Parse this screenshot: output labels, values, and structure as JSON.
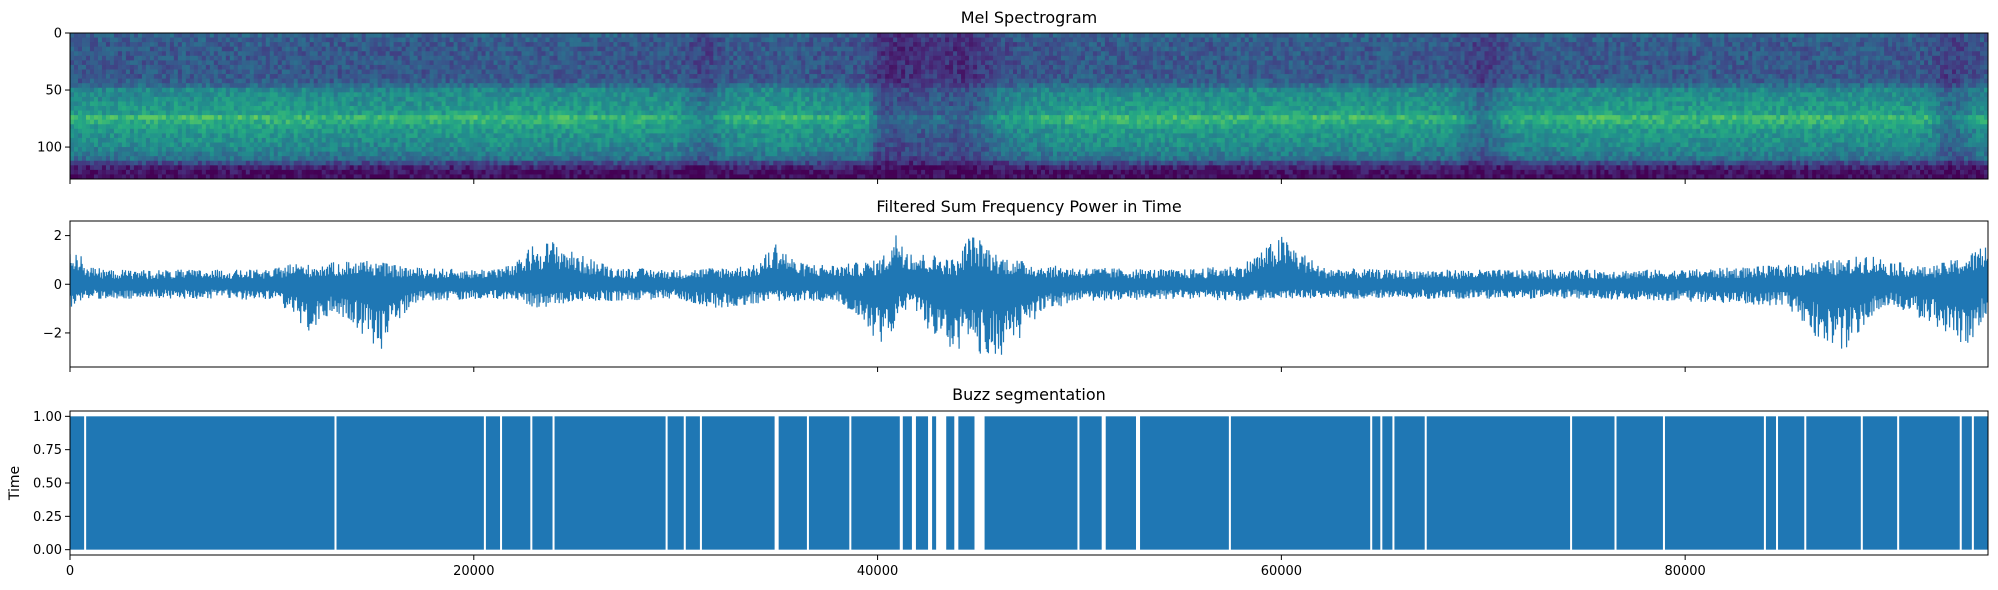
{
  "figure": {
    "background": "#ffffff"
  },
  "chart_data": [
    {
      "type": "heatmap",
      "title": "Mel Spectrogram",
      "colormap": "viridis",
      "xlim": [
        0,
        95000
      ],
      "ylim": [
        0,
        128
      ],
      "y_inverted": true,
      "yticks": [
        0,
        50,
        100
      ],
      "ytick_labels": [
        "0",
        "50",
        "100"
      ],
      "xticks": [
        0,
        20000,
        40000,
        60000,
        80000
      ],
      "xtick_labels_visible": false,
      "rows": 128,
      "time_profile": {
        "x": [
          0,
          5000,
          10000,
          15000,
          20000,
          25000,
          30000,
          31500,
          32500,
          35000,
          39500,
          40000,
          41000,
          42000,
          43000,
          44000,
          45000,
          46000,
          47000,
          50000,
          55000,
          60000,
          65000,
          68500,
          70000,
          71500,
          75000,
          80000,
          85000,
          90000,
          92000,
          93000,
          94000,
          95000
        ],
        "energy": [
          0.55,
          0.6,
          0.6,
          0.55,
          0.6,
          0.6,
          0.55,
          0.3,
          0.55,
          0.6,
          0.5,
          0.15,
          0.1,
          0.15,
          0.2,
          0.1,
          0.2,
          0.4,
          0.5,
          0.6,
          0.6,
          0.6,
          0.6,
          0.55,
          0.25,
          0.55,
          0.6,
          0.6,
          0.6,
          0.6,
          0.55,
          0.25,
          0.4,
          0.55
        ]
      },
      "band_profile": {
        "mel_bin": [
          0,
          10,
          20,
          30,
          40,
          45,
          50,
          60,
          70,
          75,
          80,
          90,
          100,
          110,
          115,
          120,
          128
        ],
        "intensity": [
          0.35,
          0.3,
          0.3,
          0.3,
          0.3,
          0.35,
          0.5,
          0.55,
          0.6,
          0.75,
          0.62,
          0.55,
          0.5,
          0.4,
          0.2,
          0.05,
          0.02
        ]
      }
    },
    {
      "type": "line",
      "title": "Filtered Sum Frequency Power in Time",
      "xlim": [
        0,
        95000
      ],
      "ylim": [
        -3.4,
        2.6
      ],
      "yticks": [
        -2,
        0,
        2
      ],
      "ytick_labels": [
        "−2",
        "0",
        "2"
      ],
      "xticks": [
        0,
        20000,
        40000,
        60000,
        80000
      ],
      "xtick_labels_visible": false,
      "color": "#1f77b4",
      "envelope": {
        "x": [
          0,
          500,
          1000,
          2000,
          5000,
          8000,
          10000,
          11000,
          12000,
          13000,
          14000,
          15000,
          15500,
          16000,
          17000,
          20000,
          22000,
          23000,
          24000,
          25000,
          27000,
          30000,
          32000,
          34000,
          35000,
          36000,
          38000,
          40000,
          40500,
          41000,
          41500,
          42000,
          43000,
          44000,
          44500,
          45000,
          46000,
          47000,
          48000,
          50000,
          55000,
          58000,
          60000,
          62000,
          65000,
          70000,
          75000,
          80000,
          85000,
          87000,
          88000,
          89000,
          90000,
          92000,
          94000,
          95000
        ],
        "upper": [
          1.6,
          1.3,
          0.7,
          0.6,
          0.6,
          0.6,
          0.6,
          0.9,
          0.8,
          0.9,
          1.0,
          1.0,
          0.9,
          0.8,
          0.7,
          0.6,
          0.8,
          1.7,
          1.8,
          1.3,
          0.7,
          0.6,
          0.7,
          0.8,
          1.8,
          0.9,
          0.8,
          1.0,
          1.4,
          2.3,
          1.6,
          1.3,
          1.2,
          1.0,
          2.1,
          1.9,
          1.2,
          1.0,
          0.8,
          0.7,
          0.6,
          0.8,
          2.0,
          0.7,
          0.6,
          0.6,
          0.6,
          0.6,
          0.8,
          1.0,
          1.0,
          1.3,
          1.0,
          0.7,
          1.2,
          1.8
        ],
        "lower": [
          -1.2,
          -0.8,
          -0.6,
          -0.6,
          -0.6,
          -0.6,
          -0.7,
          -1.2,
          -2.2,
          -1.1,
          -1.6,
          -2.6,
          -2.9,
          -1.8,
          -0.8,
          -0.6,
          -0.7,
          -1.0,
          -0.9,
          -0.7,
          -0.7,
          -0.6,
          -1.0,
          -0.8,
          -0.7,
          -0.7,
          -0.7,
          -2.3,
          -2.6,
          -1.4,
          -1.0,
          -1.2,
          -2.5,
          -3.1,
          -2.2,
          -2.9,
          -3.0,
          -2.4,
          -1.2,
          -0.7,
          -0.6,
          -0.7,
          -0.6,
          -0.6,
          -0.6,
          -0.6,
          -0.6,
          -0.7,
          -0.9,
          -2.6,
          -2.8,
          -1.5,
          -0.9,
          -1.5,
          -2.6,
          -1.2
        ]
      }
    },
    {
      "type": "area",
      "title": "Buzz segmentation",
      "ylabel": "Time",
      "xlim": [
        0,
        95000
      ],
      "ylim": [
        -0.04,
        1.04
      ],
      "yticks": [
        0,
        0.25,
        0.5,
        0.75,
        1.0
      ],
      "ytick_labels": [
        "0.00",
        "0.25",
        "0.50",
        "0.75",
        "1.00"
      ],
      "xticks": [
        0,
        20000,
        40000,
        60000,
        80000
      ],
      "xtick_labels": [
        "0",
        "20000",
        "40000",
        "60000",
        "80000"
      ],
      "color": "#1f77b4",
      "fill_value": 1.0,
      "gaps": [
        [
          700,
          800
        ],
        [
          13100,
          13200
        ],
        [
          20500,
          20600
        ],
        [
          21300,
          21400
        ],
        [
          22800,
          22900
        ],
        [
          23900,
          24000
        ],
        [
          29500,
          29600
        ],
        [
          30400,
          30500
        ],
        [
          31200,
          31300
        ],
        [
          34900,
          35100
        ],
        [
          36500,
          36600
        ],
        [
          38600,
          38700
        ],
        [
          41100,
          41250
        ],
        [
          41700,
          41900
        ],
        [
          42500,
          42700
        ],
        [
          42900,
          43400
        ],
        [
          43800,
          44000
        ],
        [
          44800,
          45300
        ],
        [
          49900,
          50000
        ],
        [
          51100,
          51300
        ],
        [
          52800,
          53000
        ],
        [
          57400,
          57500
        ],
        [
          64400,
          64500
        ],
        [
          64900,
          65000
        ],
        [
          65500,
          65600
        ],
        [
          67100,
          67200
        ],
        [
          74300,
          74400
        ],
        [
          76500,
          76600
        ],
        [
          78900,
          79000
        ],
        [
          83900,
          84000
        ],
        [
          84500,
          84600
        ],
        [
          85900,
          86000
        ],
        [
          88700,
          88800
        ],
        [
          90500,
          90600
        ],
        [
          93600,
          93700
        ],
        [
          94200,
          94300
        ]
      ]
    }
  ]
}
